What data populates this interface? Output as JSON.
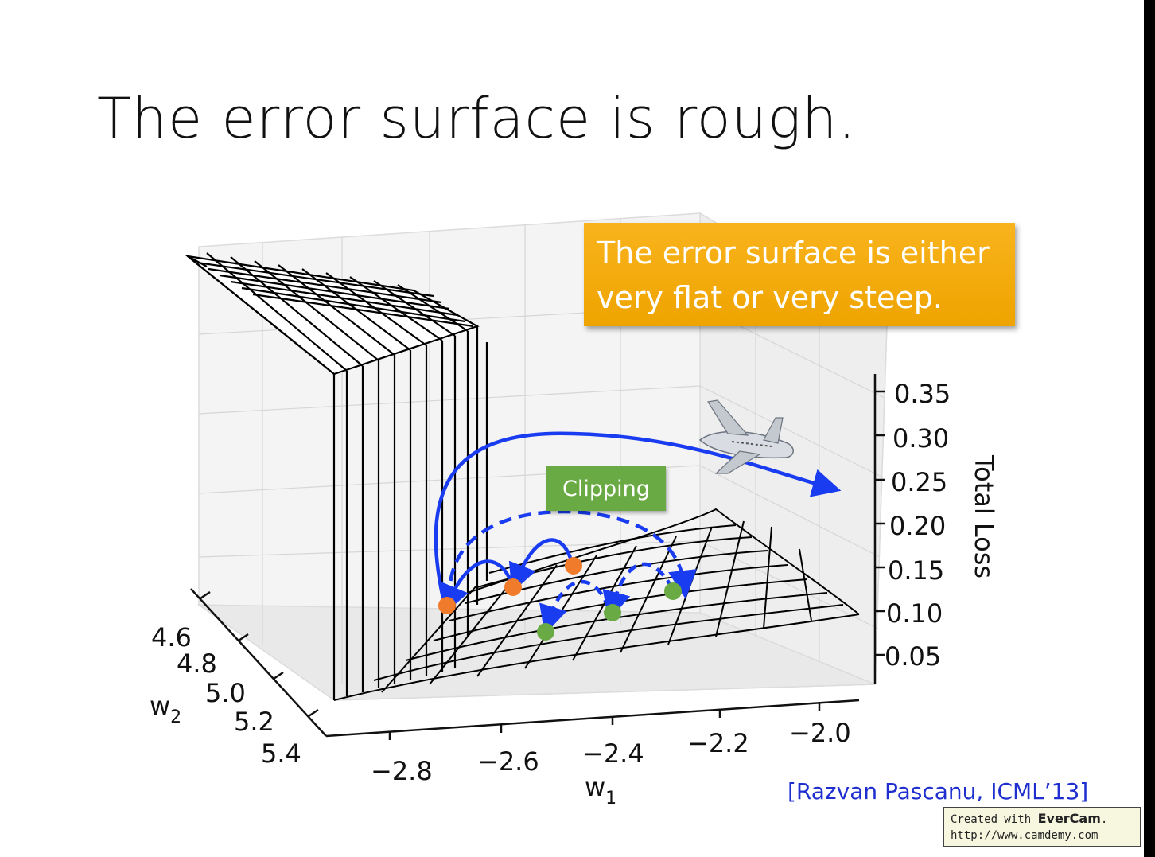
{
  "slide": {
    "title": "The error surface is rough.",
    "callout": "The error surface is either very flat or very steep.",
    "clipping_label": "Clipping",
    "citation": "[Razvan Pascanu, ICML’13]",
    "watermark": {
      "line1_prefix": "Created with ",
      "line1_brand": "EverCam",
      "line1_suffix": ".",
      "line2": "http://www.camdemy.com"
    }
  },
  "plot": {
    "z_axis_label": "Total Loss",
    "z_ticks": [
      "0.35",
      "0.30",
      "0.25",
      "0.20",
      "0.15",
      "0.10",
      "0.05"
    ],
    "w1_label": "w",
    "w1_sub": "1",
    "w1_ticks": [
      "−2.8",
      "−2.6",
      "−2.4",
      "−2.2",
      "−2.0"
    ],
    "w2_label": "w",
    "w2_sub": "2",
    "w2_ticks": [
      "4.6",
      "4.8",
      "5.0",
      "5.2",
      "5.4"
    ],
    "colors": {
      "arrow": "#1a3cf0",
      "orange_point": "#f07b2a",
      "green_point": "#6aaa44",
      "callout": "#f5a800"
    }
  }
}
